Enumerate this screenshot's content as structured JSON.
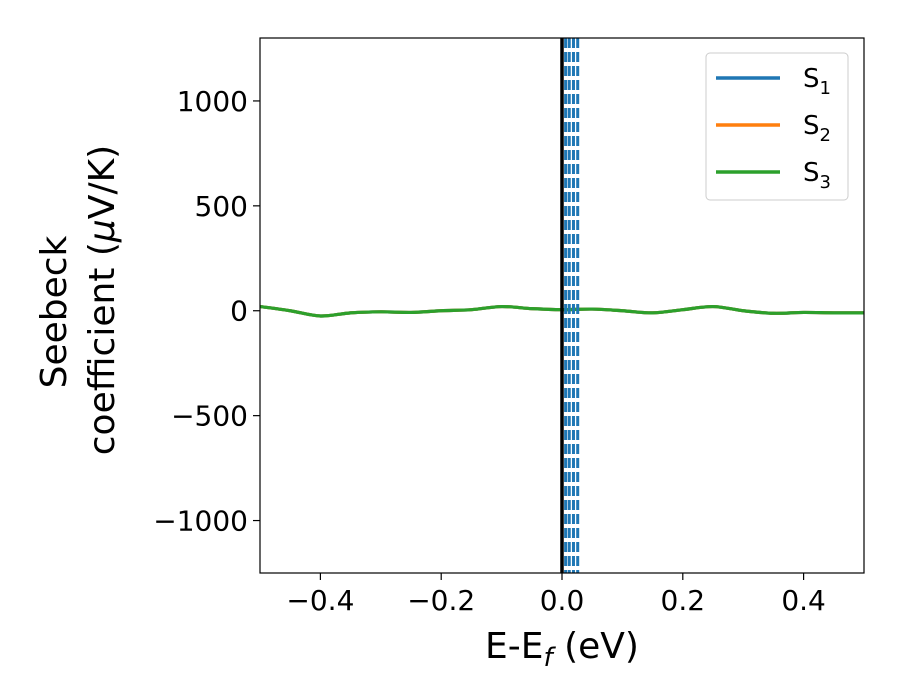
{
  "chart_data": {
    "type": "line",
    "xlabel": {
      "main": "E-E",
      "sub": "f",
      "unit": " (eV)"
    },
    "ylabel": {
      "line1": "Seebeck",
      "line2_pre": "coefficient  (",
      "mu": "μ",
      "line2_post": "V/K)"
    },
    "xlim": [
      -0.5,
      0.5
    ],
    "ylim": [
      -1250,
      1300
    ],
    "xticks": [
      -0.4,
      -0.2,
      0.0,
      0.2,
      0.4
    ],
    "xtick_labels": [
      "−0.4",
      "−0.2",
      "0.0",
      "0.2",
      "0.4"
    ],
    "yticks": [
      1000,
      500,
      0,
      -500,
      -1000
    ],
    "ytick_labels": [
      "1000",
      "500",
      "0",
      "−500",
      "−1000"
    ],
    "legend_position": "top-right",
    "grid": false,
    "series": [
      {
        "name": "S",
        "sub": "1",
        "color": "#1f77b4",
        "x": [
          -0.5,
          -0.45,
          -0.4,
          -0.35,
          -0.3,
          -0.25,
          -0.2,
          -0.15,
          -0.1,
          -0.05,
          0.0,
          0.05,
          0.1,
          0.15,
          0.2,
          0.25,
          0.3,
          0.35,
          0.4,
          0.45,
          0.5
        ],
        "y": [
          20,
          0,
          -25,
          -10,
          -5,
          -8,
          0,
          5,
          20,
          10,
          5,
          8,
          0,
          -10,
          5,
          20,
          0,
          -12,
          -8,
          -10,
          -10
        ]
      },
      {
        "name": "S",
        "sub": "2",
        "color": "#ff7f0e",
        "x": [
          -0.5,
          -0.45,
          -0.4,
          -0.35,
          -0.3,
          -0.25,
          -0.2,
          -0.15,
          -0.1,
          -0.05,
          0.0,
          0.05,
          0.1,
          0.15,
          0.2,
          0.25,
          0.3,
          0.35,
          0.4,
          0.45,
          0.5
        ],
        "y": [
          20,
          0,
          -25,
          -10,
          -5,
          -8,
          0,
          5,
          20,
          10,
          5,
          8,
          0,
          -10,
          5,
          20,
          0,
          -12,
          -8,
          -10,
          -10
        ]
      },
      {
        "name": "S",
        "sub": "3",
        "color": "#2ca02c",
        "x": [
          -0.5,
          -0.45,
          -0.4,
          -0.35,
          -0.3,
          -0.25,
          -0.2,
          -0.15,
          -0.1,
          -0.05,
          0.0,
          0.05,
          0.1,
          0.15,
          0.2,
          0.25,
          0.3,
          0.35,
          0.4,
          0.45,
          0.5
        ],
        "y": [
          20,
          0,
          -25,
          -10,
          -5,
          -8,
          0,
          5,
          20,
          10,
          5,
          8,
          0,
          -10,
          5,
          20,
          0,
          -12,
          -8,
          -10,
          -10
        ]
      }
    ],
    "vertical_lines": [
      {
        "x": 0.0,
        "style": "solid",
        "color": "#000000"
      },
      {
        "x": 0.006,
        "style": "dashed",
        "color": "#1f77b4"
      },
      {
        "x": 0.012,
        "style": "dashed",
        "color": "#1f77b4"
      },
      {
        "x": 0.019,
        "style": "dashed",
        "color": "#1f77b4"
      },
      {
        "x": 0.026,
        "style": "dashed",
        "color": "#1f77b4"
      }
    ]
  }
}
